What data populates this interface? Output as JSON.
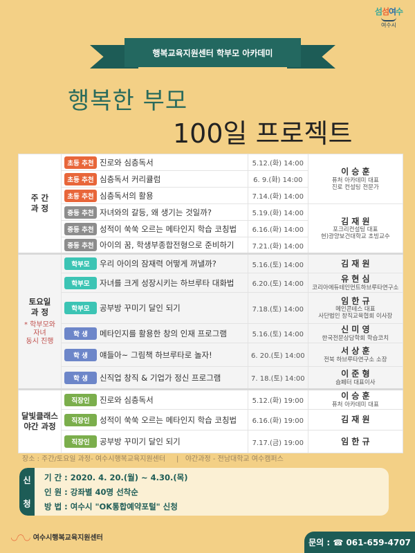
{
  "logo": {
    "brand": "섬섬여수",
    "city": "여수시"
  },
  "ribbon": "행복교육지원센터 학부모 아카데미",
  "title_line1": "행복한 부모",
  "title_line2": "100일 프로젝트",
  "badge_colors": {
    "초등 추천": "#e8663a",
    "중등 추천": "#8d8d8d",
    "학부모": "#3cc4b4",
    "학 생": "#6d86c9",
    "직장인": "#7bae4c"
  },
  "sections": [
    {
      "category": "주 간\n과 정",
      "note": "",
      "rows": [
        {
          "badge": "초등 추천",
          "title": "진로와 심층독서",
          "date": "5.12.(화) 14:00",
          "instructor": {
            "name": "이 승 훈",
            "desc": "퓨처 아카데미 대표\n진로 컨설팅 전문가",
            "span": 3
          }
        },
        {
          "badge": "초등 추천",
          "title": "심층독서 커리큘럼",
          "date": "6. 9.(화) 14:00"
        },
        {
          "badge": "초등 추천",
          "title": "심층독서의 활용",
          "date": "7.14.(화) 14:00"
        },
        {
          "badge": "중등 추천",
          "title": "자녀와의 갈등, 왜 생기는 것일까?",
          "date": "5.19.(화) 14:00",
          "instructor": {
            "name": "김 재 원",
            "desc": "포크리컨설팅 대표\n현)광양보건대학교 초빙교수",
            "span": 3
          }
        },
        {
          "badge": "중등 추천",
          "title": "성적이 쑥쑥 오르는 메타인지 학습 코칭법",
          "date": "6.16.(화) 14:00"
        },
        {
          "badge": "중등 추천",
          "title": "아이의 꿈, 학생부종합전형으로 준비하기",
          "date": "7.21.(화) 14:00"
        }
      ]
    },
    {
      "category": "토요일\n과 정",
      "note": "* 학부모와\n자녀\n동시 진행",
      "rows": [
        {
          "badge": "학부모",
          "title": "우리 아이의 잠재력 어떻게 꺼낼까?",
          "date": "5.16.(토) 14:00",
          "instructor": {
            "name": "김 재 원",
            "desc": "",
            "span": 1
          }
        },
        {
          "badge": "학부모",
          "title": "자녀를 크게 성장시키는 하브루타 대화법",
          "date": "6.20.(토) 14:00",
          "instructor": {
            "name": "유 현 심",
            "desc": "코리아에듀테인먼트하브루타연구소",
            "span": 1
          }
        },
        {
          "badge": "학부모",
          "title": "공부방 꾸미기 달인 되기",
          "date": "7.18.(토) 14:00",
          "instructor": {
            "name": "임 한 규",
            "desc": "메인콘테스 대표\n사단법인 창직교육협회 이사장",
            "span": 1
          }
        },
        {
          "badge": "학 생",
          "title": "메타인지를 활용한 창의 인재 프로그램",
          "date": "5.16.(토) 14:00",
          "instructor": {
            "name": "신 미 영",
            "desc": "한국전문상담학회 학습코치",
            "span": 1
          }
        },
        {
          "badge": "학 생",
          "title": "얘들아~ 그림책 하브루타로 놀자!",
          "date": "6. 20.(토) 14:00",
          "instructor": {
            "name": "서 상 훈",
            "desc": "전북 하브루타연구소 소장",
            "span": 1
          }
        },
        {
          "badge": "학 생",
          "title": "신직업 창직 & 기업가 정신 프로그램",
          "date": "7. 18.(토) 14:00",
          "instructor": {
            "name": "이 준 형",
            "desc": "슘페터 대표이사",
            "span": 1
          }
        }
      ]
    },
    {
      "category": "달빛클래스\n야간 과정",
      "note": "",
      "rows": [
        {
          "badge": "직장인",
          "title": "진로와 심층독서",
          "date": "5.12.(화) 19:00",
          "instructor": {
            "name": "이 승 훈",
            "desc": "퓨처 아카데미 대표",
            "span": 1
          }
        },
        {
          "badge": "직장인",
          "title": "성적이 쑥쑥 오르는 메타인지 학습 코칭법",
          "date": "6.16.(화) 19:00",
          "instructor": {
            "name": "김 재 원",
            "desc": "",
            "span": 1
          }
        },
        {
          "badge": "직장인",
          "title": "공부방 꾸미기 달인 되기",
          "date": "7.17.(금) 19:00",
          "instructor": {
            "name": "임 한 규",
            "desc": "",
            "span": 1
          }
        }
      ]
    }
  ],
  "place": "장소 : 주간/토요일 과정- 여수시행복교육지원센터     |   야간과정 - 전남대학교 여수캠퍼스",
  "apply": {
    "label_top": "신",
    "label_bottom": "청",
    "period": "기 간 : 2020. 4. 20.(월) ~ 4.30.(목)",
    "capacity": "인 원 : 강좌별 40명 선착순",
    "method": "방 법 : 여수시 \"OK통합예약포털\" 신청"
  },
  "footer": {
    "org": "여수시행복교육지원센터",
    "contact": "문의 : ☎ 061-659-4707"
  }
}
